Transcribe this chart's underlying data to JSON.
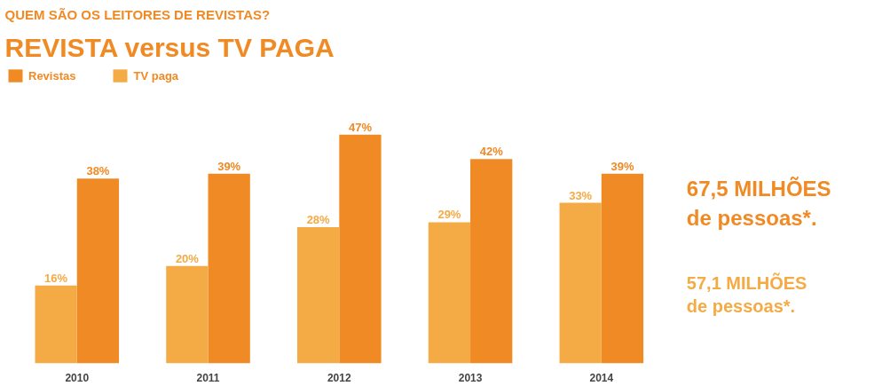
{
  "chart_data": {
    "type": "bar",
    "subtitle": "QUEM SÃO OS LEITORES DE REVISTAS?",
    "title": "REVISTA versus TV PAGA",
    "categories": [
      "2010",
      "2011",
      "2012",
      "2013",
      "2014"
    ],
    "series": [
      {
        "name": "Revistas",
        "color": "#f08a24",
        "values": [
          38,
          39,
          47,
          42,
          39
        ],
        "value_labels": [
          "38%",
          "39%",
          "47%",
          "42%",
          "39%"
        ]
      },
      {
        "name": "TV paga",
        "color": "#f5ab45",
        "values": [
          16,
          20,
          28,
          29,
          33
        ],
        "value_labels": [
          "16%",
          "20%",
          "28%",
          "29%",
          "33%"
        ]
      }
    ],
    "legend": "top left",
    "annotations": [
      "67,5 MILHÕES\nde pessoas*.",
      "57,1 MILHÕES\nde pessoas*."
    ]
  }
}
